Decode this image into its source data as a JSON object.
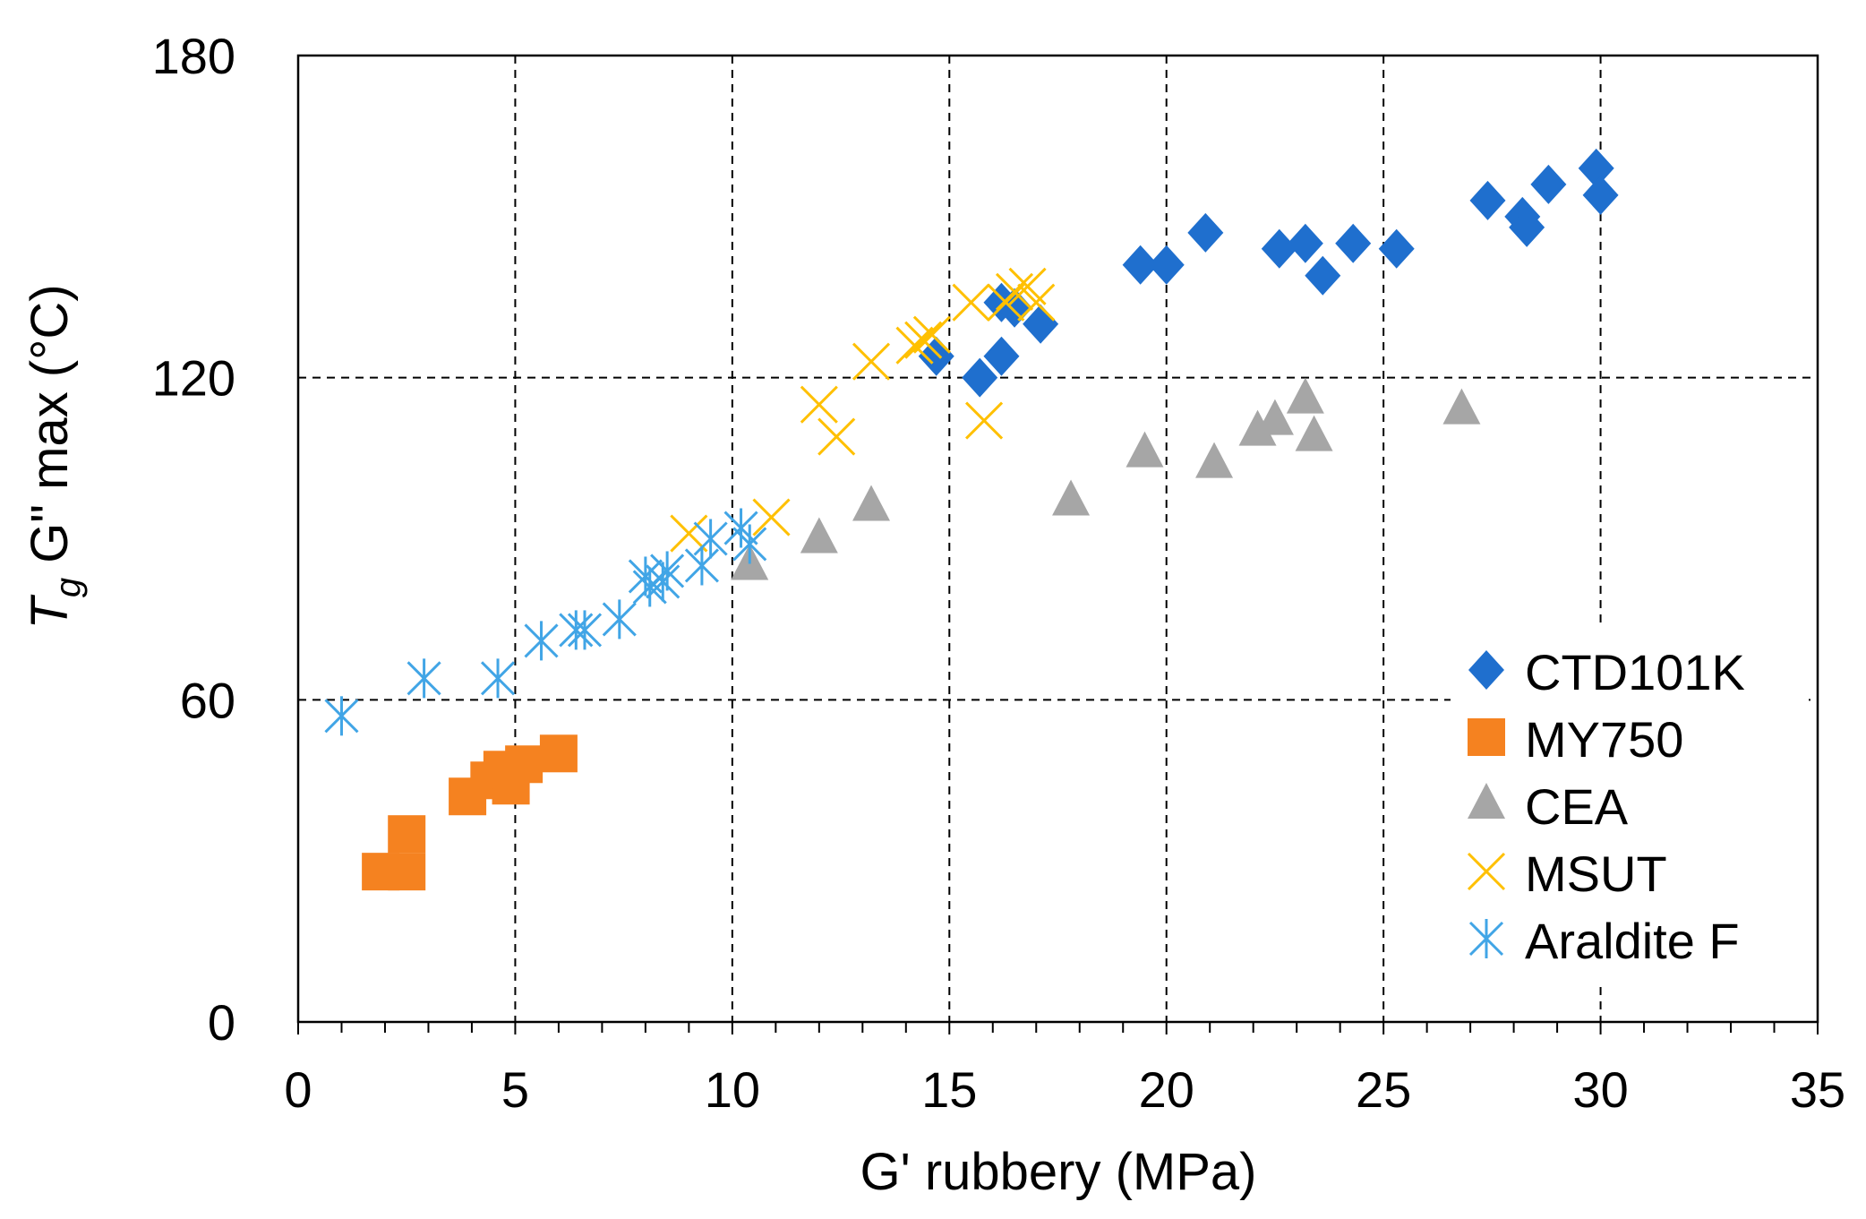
{
  "chart_data": {
    "type": "scatter",
    "title": "",
    "xlabel": "G' rubbery (MPa)",
    "ylabel_main": "T",
    "ylabel_sub": "g",
    "ylabel_rest": " G\" max (°C)",
    "xlim": [
      0,
      35
    ],
    "ylim": [
      0,
      180
    ],
    "xticks": [
      "0",
      "5",
      "10",
      "15",
      "20",
      "25",
      "30",
      "35"
    ],
    "yticks": [
      "0",
      "60",
      "120",
      "180"
    ],
    "grid": "dashed",
    "legend_position": "right",
    "series": [
      {
        "name": "CTD101K",
        "marker": "diamond",
        "color": "#1f6fce",
        "points": [
          [
            14.7,
            124
          ],
          [
            15.7,
            120
          ],
          [
            16.2,
            124
          ],
          [
            16.2,
            134
          ],
          [
            16.5,
            133
          ],
          [
            17.1,
            130
          ],
          [
            19.4,
            141
          ],
          [
            20.0,
            141
          ],
          [
            20.9,
            147
          ],
          [
            22.6,
            144
          ],
          [
            23.2,
            145
          ],
          [
            23.6,
            139
          ],
          [
            24.3,
            145
          ],
          [
            25.3,
            144
          ],
          [
            27.4,
            153
          ],
          [
            28.2,
            150
          ],
          [
            28.3,
            148
          ],
          [
            28.8,
            156
          ],
          [
            29.9,
            159
          ],
          [
            30.0,
            154
          ]
        ]
      },
      {
        "name": "MY750",
        "color": "#f58220",
        "marker": "square",
        "points": [
          [
            1.9,
            28
          ],
          [
            2.5,
            28
          ],
          [
            2.5,
            35
          ],
          [
            3.9,
            42
          ],
          [
            4.4,
            45
          ],
          [
            4.7,
            47
          ],
          [
            4.9,
            44
          ],
          [
            5.2,
            48
          ],
          [
            6.0,
            50
          ]
        ]
      },
      {
        "name": "CEA",
        "color": "#a6a6a6",
        "marker": "triangle",
        "points": [
          [
            10.4,
            85
          ],
          [
            12.0,
            90
          ],
          [
            13.2,
            96
          ],
          [
            17.8,
            97
          ],
          [
            19.5,
            106
          ],
          [
            21.1,
            104
          ],
          [
            22.1,
            110
          ],
          [
            22.5,
            112
          ],
          [
            23.2,
            116
          ],
          [
            23.4,
            109
          ],
          [
            26.8,
            114
          ]
        ]
      },
      {
        "name": "MSUT",
        "color": "#ffc000",
        "marker": "x",
        "points": [
          [
            9.0,
            91
          ],
          [
            10.9,
            94
          ],
          [
            12.0,
            115
          ],
          [
            12.4,
            109
          ],
          [
            13.2,
            123
          ],
          [
            14.2,
            126
          ],
          [
            14.4,
            127
          ],
          [
            14.6,
            128
          ],
          [
            15.5,
            134
          ],
          [
            15.8,
            112
          ],
          [
            16.3,
            134
          ],
          [
            16.5,
            136
          ],
          [
            16.8,
            137
          ],
          [
            17.0,
            134
          ]
        ]
      },
      {
        "name": "Araldite F",
        "color": "#41a5e6",
        "marker": "asterisk",
        "points": [
          [
            1.0,
            57
          ],
          [
            2.9,
            64
          ],
          [
            4.6,
            64
          ],
          [
            5.6,
            71
          ],
          [
            6.4,
            73
          ],
          [
            6.6,
            73
          ],
          [
            7.4,
            75
          ],
          [
            8.0,
            83
          ],
          [
            8.1,
            81
          ],
          [
            8.4,
            82
          ],
          [
            8.5,
            84
          ],
          [
            9.3,
            85
          ],
          [
            9.5,
            90
          ],
          [
            10.2,
            92
          ],
          [
            10.4,
            89
          ]
        ]
      }
    ]
  }
}
